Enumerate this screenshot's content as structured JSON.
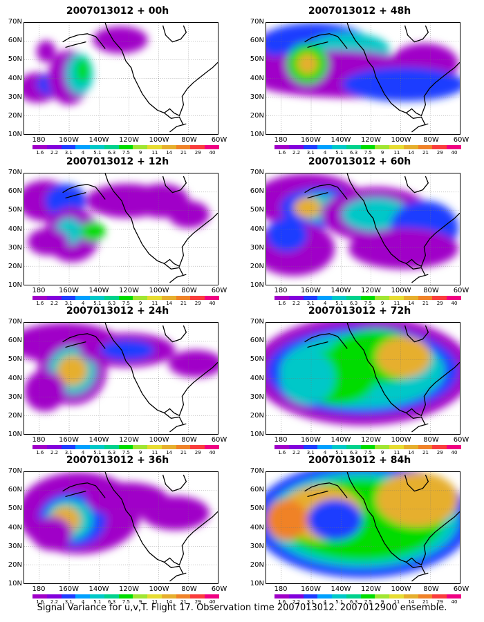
{
  "figure": {
    "footer": "Signal Variance for u,v,T. Flight 17. Observation time 2007013012. 2007012900 ensemble."
  },
  "panels": [
    {
      "title": "2007013012 + 00h"
    },
    {
      "title": "2007013012 + 48h"
    },
    {
      "title": "2007013012 + 12h"
    },
    {
      "title": "2007013012 + 60h"
    },
    {
      "title": "2007013012 + 24h"
    },
    {
      "title": "2007013012 + 72h"
    },
    {
      "title": "2007013012 + 36h"
    },
    {
      "title": "2007013012 + 84h"
    }
  ],
  "map": {
    "lat_labels": [
      "70N",
      "60N",
      "50N",
      "40N",
      "30N",
      "20N",
      "10N"
    ],
    "lon_labels": [
      "180",
      "160W",
      "140W",
      "120W",
      "100W",
      "80W",
      "60W"
    ],
    "extent": {
      "lon_min": 170,
      "lon_max": 300,
      "lat_min": 10,
      "lat_max": 70
    }
  },
  "colorbar": {
    "levels": [
      "1.6",
      "2.2",
      "3.1",
      "4",
      "5.1",
      "6.3",
      "7.5",
      "9",
      "11",
      "14",
      "21",
      "29",
      "40"
    ],
    "colors": [
      "#a000c8",
      "#8200dc",
      "#1e3cff",
      "#00a0ff",
      "#00c8c8",
      "#00d28c",
      "#00dc00",
      "#a0e632",
      "#e6dc32",
      "#e6af2d",
      "#f08228",
      "#fa3c3c",
      "#f00082"
    ]
  }
}
